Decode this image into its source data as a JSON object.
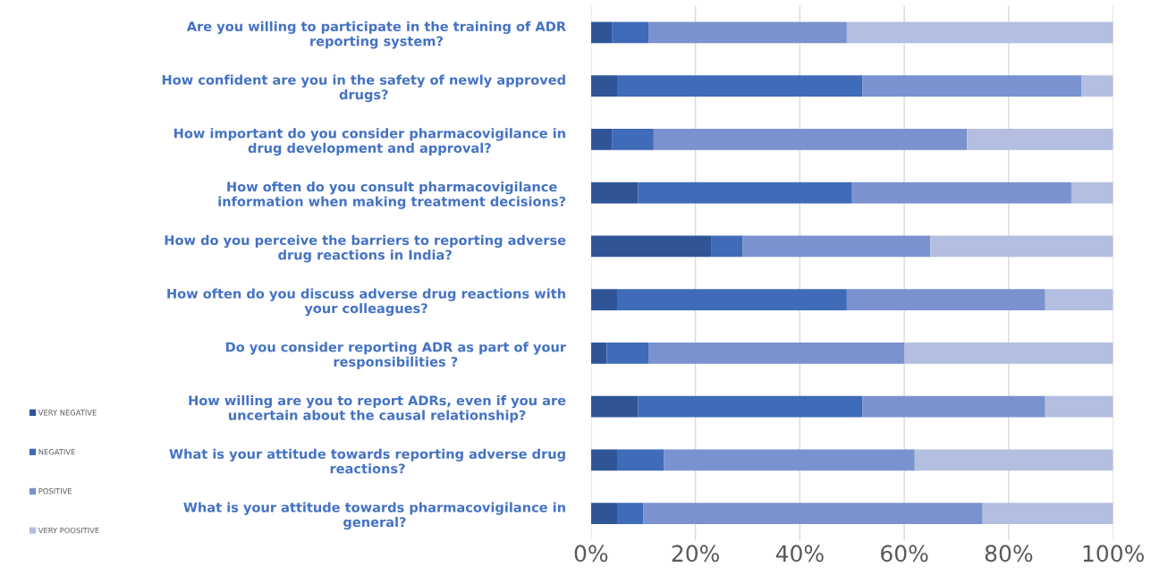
{
  "chart_data": {
    "type": "bar",
    "orientation": "horizontal",
    "stacked": true,
    "categories": [
      "Are you willing to participate in the training of ADR\nreporting system?",
      "How confident are you in the safety of newly approved\ndrugs?",
      "How important do you consider pharmacovigilance in\ndrug development and approval?",
      "How often do you consult pharmacovigilance\ninformation when making treatment decisions?",
      "How do you perceive the barriers to reporting adverse\ndrug reactions in India?",
      "How often do you discuss adverse drug reactions with\nyour colleagues?",
      "Do you consider reporting ADR as part of your\nresponsibilities ?",
      "How willing are you to report ADRs, even if you are\nuncertain about the causal relationship?",
      "What is your attitude towards reporting adverse drug\nreactions?",
      "What is your attitude towards pharmacovigilance in\ngeneral?"
    ],
    "series": [
      {
        "name": "VERY NEGATIVE",
        "color": "#2f5597",
        "values": [
          4,
          5,
          4,
          9,
          23,
          5,
          3,
          9,
          5,
          5
        ]
      },
      {
        "name": "NEGATIVE",
        "color": "#3f6bb8",
        "values": [
          7,
          47,
          8,
          41,
          6,
          44,
          8,
          43,
          9,
          5
        ]
      },
      {
        "name": "POSITIVE",
        "color": "#7a92cf",
        "values": [
          38,
          42,
          60,
          42,
          36,
          38,
          49,
          35,
          48,
          65
        ]
      },
      {
        "name": "VERY POOSITIVE",
        "color": "#b3bee0",
        "values": [
          51,
          6,
          28,
          8,
          35,
          13,
          40,
          13,
          38,
          25
        ]
      }
    ],
    "xlim": [
      0,
      100
    ],
    "xticks": [
      {
        "value": 0,
        "label": "0%"
      },
      {
        "value": 20,
        "label": "20%"
      },
      {
        "value": 40,
        "label": "40%"
      },
      {
        "value": 60,
        "label": "60%"
      },
      {
        "value": 80,
        "label": "80%"
      },
      {
        "value": 100,
        "label": "100%"
      }
    ],
    "grid": "x",
    "legend": "left"
  }
}
